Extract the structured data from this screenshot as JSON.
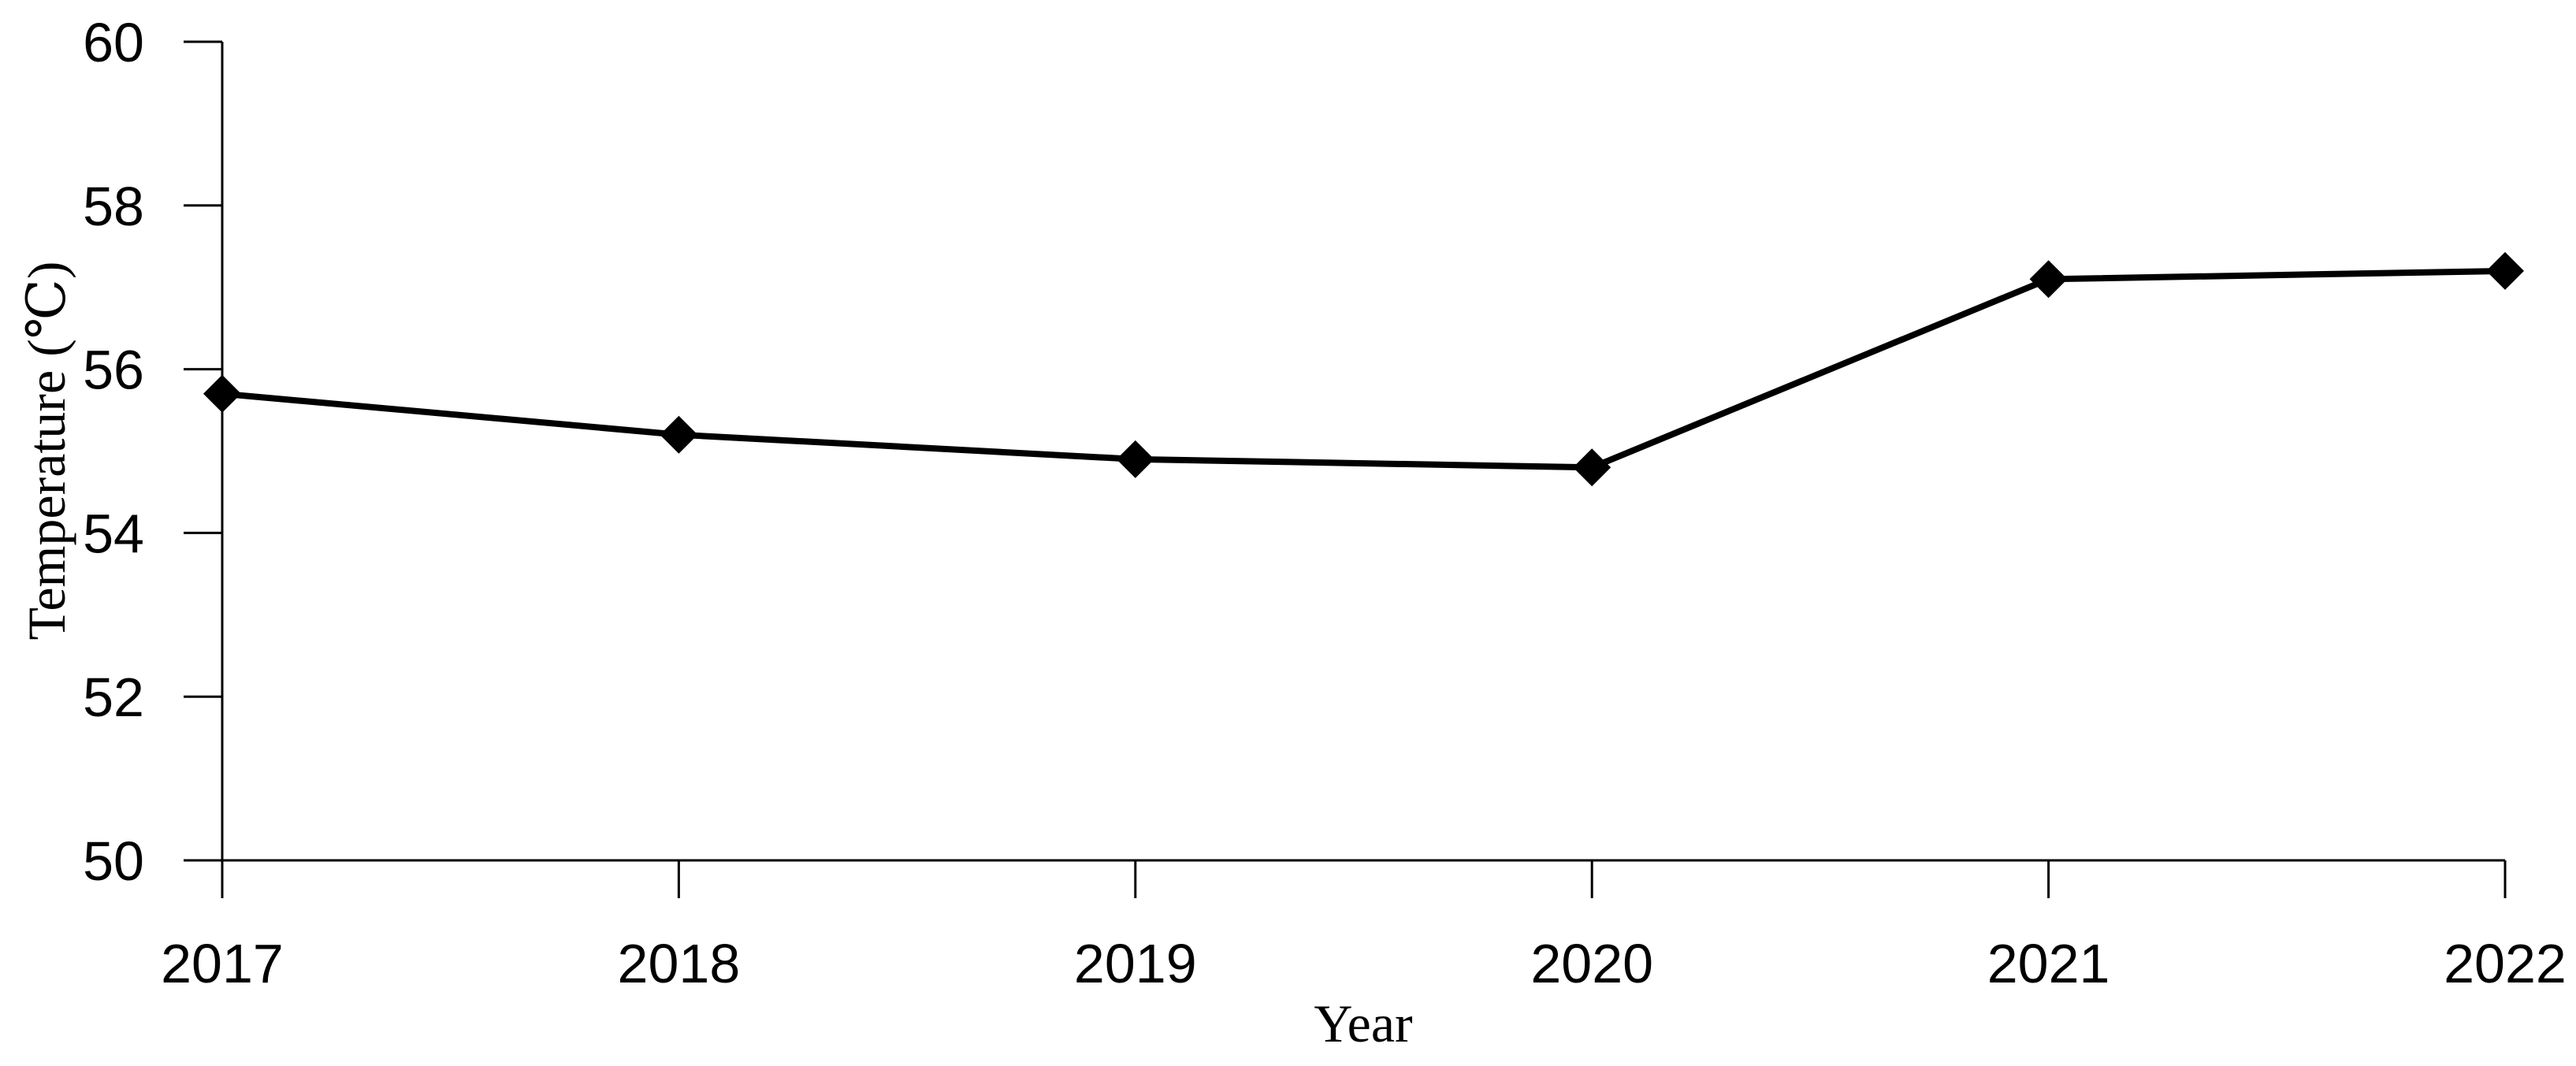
{
  "page": {
    "background_color": "#ffffff",
    "foreground_color": "#000000"
  },
  "chart_data": {
    "type": "line",
    "title": "",
    "xlabel": "Year",
    "ylabel": "Temperature (℃)",
    "x": [
      2017,
      2018,
      2019,
      2020,
      2021,
      2022
    ],
    "values": [
      55.7,
      55.2,
      54.9,
      54.8,
      57.1,
      57.2
    ],
    "ylim": [
      50,
      60
    ],
    "yticks": [
      50,
      52,
      54,
      56,
      58,
      60
    ],
    "grid": false,
    "legend": false,
    "marker": "diamond",
    "line_color": "#000000",
    "marker_color": "#000000",
    "axis_color": "#000000",
    "tick_label_color": "#000000"
  }
}
